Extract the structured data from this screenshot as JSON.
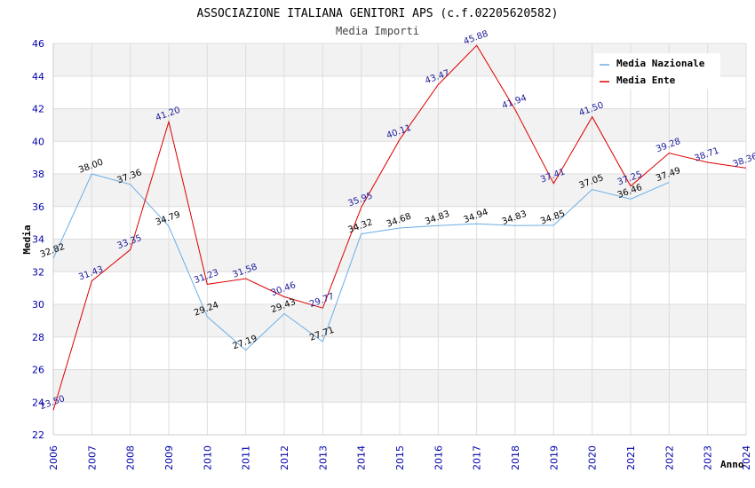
{
  "chart_data": {
    "type": "line",
    "title": "ASSOCIAZIONE ITALIANA GENITORI APS (c.f.02205620582)",
    "subtitle": "Media Importi",
    "xlabel": "Anno",
    "ylabel": "Media",
    "ylim": [
      22,
      46
    ],
    "yticks": [
      "22",
      "24",
      "26",
      "28",
      "30",
      "32",
      "34",
      "36",
      "38",
      "40",
      "42",
      "44",
      "46"
    ],
    "categories": [
      "2006",
      "2007",
      "2008",
      "2009",
      "2010",
      "2011",
      "2012",
      "2013",
      "2014",
      "2015",
      "2016",
      "2017",
      "2018",
      "2019",
      "2020",
      "2021",
      "2022",
      "2023",
      "2024"
    ],
    "series": [
      {
        "name": "Media Nazionale",
        "color": "#6aaee6",
        "values": [
          32.82,
          38.0,
          37.36,
          34.79,
          29.24,
          27.19,
          29.43,
          27.71,
          34.32,
          34.68,
          34.83,
          34.94,
          34.83,
          34.85,
          37.05,
          36.46,
          37.49,
          null,
          null
        ],
        "labels": [
          "32.82",
          "38.00",
          "37.36",
          "34.79",
          "29.24",
          "27.19",
          "29.43",
          "27.71",
          "34.32",
          "34.68",
          "34.83",
          "34.94",
          "34.83",
          "34.85",
          "37.05",
          "36.46",
          "37.49",
          null,
          null
        ]
      },
      {
        "name": "Media Ente",
        "color": "#dd0000",
        "values": [
          23.5,
          31.43,
          33.35,
          41.2,
          31.23,
          31.58,
          30.46,
          29.77,
          35.95,
          40.11,
          43.47,
          45.88,
          41.94,
          37.41,
          41.5,
          37.25,
          39.28,
          38.71,
          38.36
        ],
        "labels": [
          "23.50",
          "31.43",
          "33.35",
          "41.20",
          "31.23",
          "31.58",
          "30.46",
          "29.77",
          "35.95",
          "40.11",
          "43.47",
          "45.88",
          "41.94",
          "37.41",
          "41.50",
          "37.25",
          "39.28",
          "38.71",
          "38.36"
        ]
      }
    ],
    "legend_position": "top-right",
    "grid": true
  }
}
